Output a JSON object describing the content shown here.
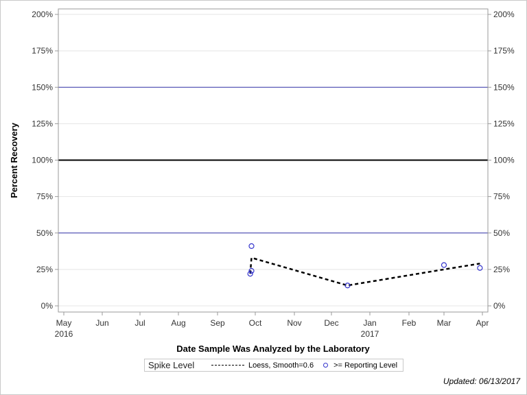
{
  "chart_data": {
    "type": "scatter",
    "title": "",
    "xlabel": "Date Sample Was Analyzed by the Laboratory",
    "ylabel": "Percent Recovery",
    "ylim": [
      0,
      200
    ],
    "y_ticks": [
      "0%",
      "25%",
      "50%",
      "75%",
      "100%",
      "125%",
      "150%",
      "175%",
      "200%"
    ],
    "x_ticks": [
      {
        "label": "May",
        "sub": "2016"
      },
      {
        "label": "Jun",
        "sub": ""
      },
      {
        "label": "Jul",
        "sub": ""
      },
      {
        "label": "Aug",
        "sub": ""
      },
      {
        "label": "Sep",
        "sub": ""
      },
      {
        "label": "Oct",
        "sub": ""
      },
      {
        "label": "Nov",
        "sub": ""
      },
      {
        "label": "Dec",
        "sub": ""
      },
      {
        "label": "Jan",
        "sub": "2017"
      },
      {
        "label": "Feb",
        "sub": ""
      },
      {
        "label": "Mar",
        "sub": ""
      },
      {
        "label": "Apr",
        "sub": ""
      }
    ],
    "reference_lines": [
      {
        "y": 100,
        "color": "#000000",
        "width": 2
      },
      {
        "y": 150,
        "color": "#3333aa",
        "width": 1
      },
      {
        "y": 50,
        "color": "#3333aa",
        "width": 1
      }
    ],
    "series": [
      {
        "name": ">= Reporting Level",
        "type": "scatter",
        "color": "#3333cc",
        "points": [
          {
            "date": "2016-09-27",
            "value": 22
          },
          {
            "date": "2016-09-28",
            "value": 24
          },
          {
            "date": "2016-09-28",
            "value": 41
          },
          {
            "date": "2016-12-14",
            "value": 14
          },
          {
            "date": "2017-03-01",
            "value": 28
          },
          {
            "date": "2017-03-30",
            "value": 26
          }
        ]
      },
      {
        "name": "Loess, Smooth=0.6",
        "type": "line",
        "style": "dashed",
        "color": "#000000",
        "points": [
          {
            "date": "2016-09-27",
            "value": 22
          },
          {
            "date": "2016-09-28",
            "value": 33
          },
          {
            "date": "2016-12-14",
            "value": 14
          },
          {
            "date": "2017-03-01",
            "value": 25
          },
          {
            "date": "2017-03-30",
            "value": 29
          }
        ]
      }
    ],
    "legend": {
      "title": "Spike Level",
      "entries": [
        "Loess, Smooth=0.6",
        ">= Reporting Level"
      ],
      "position": "bottom"
    },
    "grid": true
  },
  "footer": {
    "updated": "Updated: 06/13/2017"
  }
}
